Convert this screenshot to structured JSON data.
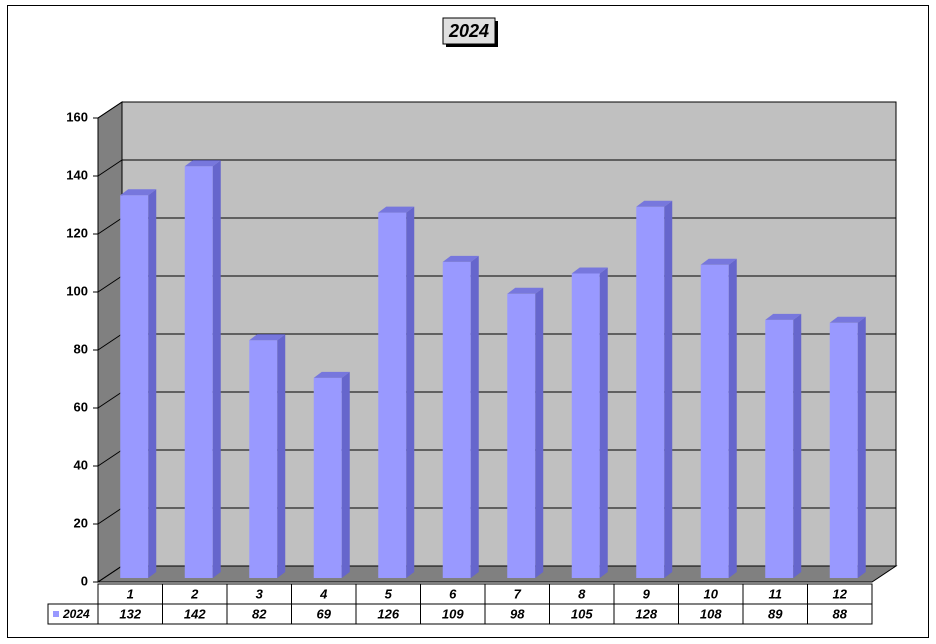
{
  "chart_data": {
    "type": "bar",
    "title": "2024",
    "categories": [
      "1",
      "2",
      "3",
      "4",
      "5",
      "6",
      "7",
      "8",
      "9",
      "10",
      "11",
      "12"
    ],
    "series": [
      {
        "name": "2024",
        "color": "#9999ff",
        "values": [
          132,
          142,
          82,
          69,
          126,
          109,
          98,
          105,
          128,
          108,
          89,
          88
        ]
      }
    ],
    "ylim": [
      0,
      160
    ],
    "yticks": [
      0,
      20,
      40,
      60,
      80,
      100,
      120,
      140,
      160
    ],
    "grid": true,
    "data_table": true
  }
}
